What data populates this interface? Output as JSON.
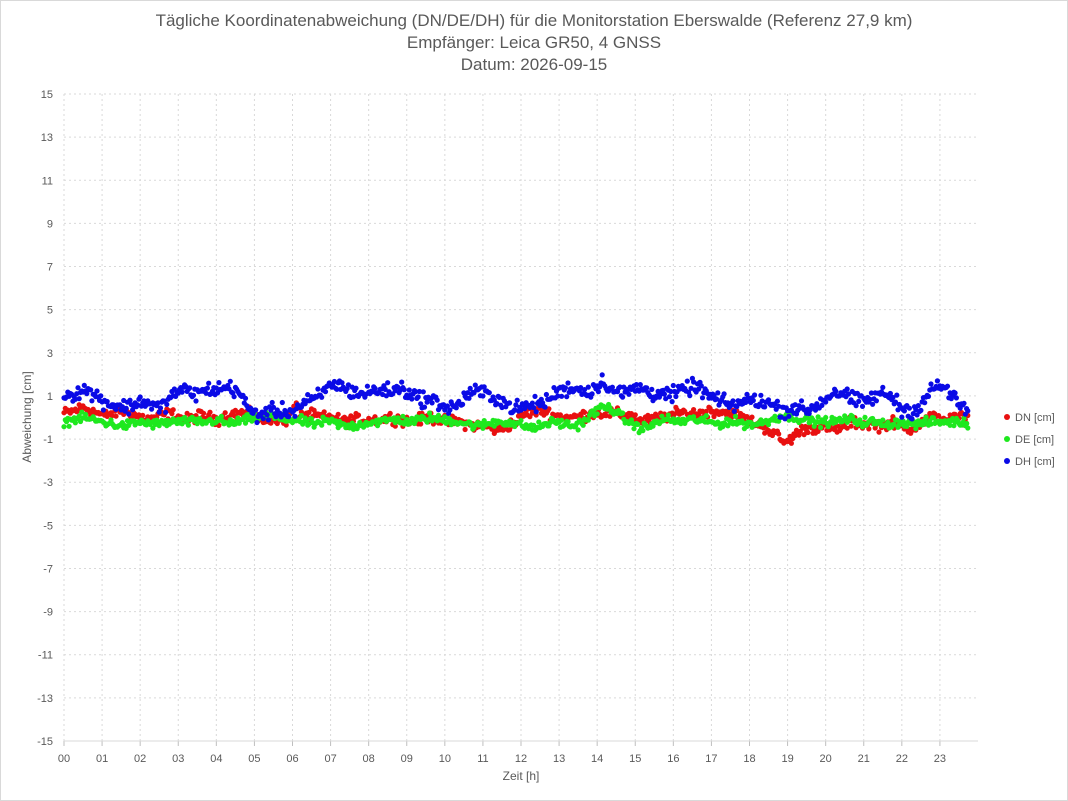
{
  "chart_data": {
    "type": "scatter",
    "title": "Tägliche Koordinatenabweichung (DN/DE/DH) für die Monitorstation Eberswalde (Referenz 27,9 km)",
    "subtitle_receiver": "Empfänger: Leica GR50, 4 GNSS",
    "subtitle_date": "Datum: 2026-09-15",
    "xlabel": "Zeit [h]",
    "ylabel": "Abweichung [cm]",
    "xlim": [
      0,
      24
    ],
    "ylim": [
      -15,
      15
    ],
    "x_ticks": [
      "00",
      "01",
      "02",
      "03",
      "04",
      "05",
      "06",
      "07",
      "08",
      "09",
      "10",
      "11",
      "12",
      "13",
      "14",
      "15",
      "16",
      "17",
      "18",
      "19",
      "20",
      "21",
      "22",
      "23"
    ],
    "y_ticks": [
      15,
      13,
      11,
      9,
      7,
      5,
      3,
      1,
      -1,
      -3,
      -5,
      -7,
      -9,
      -11,
      -13,
      -15
    ],
    "grid": true,
    "legend_position": "right",
    "sample_interval_min": 2,
    "series": [
      {
        "name": "DN [cm]",
        "color": "#e81010",
        "base": [
          0.2,
          0.3,
          0.5,
          0.3,
          0.1,
          0.2,
          0.3,
          0.2,
          0.0,
          -0.1,
          0.1,
          0.2,
          0.0,
          -0.1,
          0.1,
          0.0,
          -0.1,
          0.1,
          0.2,
          0.2,
          0.0,
          -0.2,
          0.0,
          -0.2,
          0.5,
          0.1,
          0.1,
          0.0,
          0.0,
          -0.2,
          -0.1,
          -0.1,
          -0.1,
          -0.1,
          0.0,
          -0.1,
          -0.2,
          -0.1,
          0.0,
          -0.1,
          -0.2,
          -0.2,
          -0.3,
          -0.4,
          -0.4,
          -0.6,
          -0.4,
          -0.2,
          0.2,
          0.3,
          0.3,
          0.1,
          0.0,
          0.0,
          0.1,
          0.2,
          0.2,
          0.2,
          0.1,
          0.1,
          -0.2,
          -0.1,
          0.0,
          0.1,
          0.2,
          0.2,
          0.2,
          0.3,
          0.3,
          0.2,
          0.1,
          -0.1,
          -0.3,
          -0.5,
          -0.8,
          -1.2,
          -0.8,
          -0.5,
          -0.5,
          -0.4,
          -0.6,
          -0.4,
          -0.2,
          -0.3,
          -0.3,
          -0.4,
          -0.2,
          -0.4,
          -0.5,
          -0.3,
          0.0,
          0.0,
          -0.1,
          0.0,
          -0.1,
          0.2
        ],
        "noise": 0.22
      },
      {
        "name": "DE [cm]",
        "color": "#1ee81e",
        "base": [
          -0.2,
          -0.1,
          0.0,
          -0.1,
          -0.2,
          -0.3,
          -0.4,
          -0.3,
          -0.2,
          -0.3,
          -0.3,
          -0.2,
          -0.2,
          -0.2,
          -0.2,
          -0.2,
          -0.1,
          -0.3,
          -0.2,
          -0.1,
          0.0,
          0.1,
          0.0,
          -0.1,
          -0.1,
          -0.2,
          -0.3,
          -0.2,
          -0.2,
          -0.4,
          -0.4,
          -0.3,
          -0.2,
          -0.2,
          -0.1,
          -0.1,
          -0.2,
          -0.1,
          0.0,
          -0.1,
          -0.1,
          -0.2,
          -0.3,
          -0.4,
          -0.3,
          -0.2,
          -0.2,
          -0.3,
          -0.4,
          -0.5,
          -0.3,
          -0.2,
          -0.3,
          -0.4,
          -0.2,
          0.2,
          0.5,
          0.4,
          0.0,
          -0.3,
          -0.5,
          -0.4,
          -0.1,
          -0.1,
          -0.2,
          -0.1,
          -0.1,
          -0.2,
          -0.3,
          -0.2,
          -0.2,
          -0.3,
          -0.3,
          -0.2,
          0.0,
          0.1,
          0.0,
          -0.1,
          -0.2,
          -0.2,
          -0.2,
          -0.1,
          -0.1,
          -0.2,
          -0.2,
          -0.3,
          -0.3,
          -0.2,
          -0.3,
          -0.3,
          -0.2,
          -0.2,
          -0.2,
          -0.2,
          -0.3,
          -0.2
        ],
        "noise": 0.18
      },
      {
        "name": "DH [cm]",
        "color": "#0a0ae6",
        "base": [
          1.0,
          1.1,
          1.3,
          1.1,
          0.8,
          0.6,
          0.5,
          0.5,
          0.8,
          0.6,
          0.4,
          0.9,
          1.3,
          1.2,
          1.1,
          1.3,
          1.3,
          1.4,
          1.3,
          0.5,
          0.1,
          0.2,
          0.3,
          0.3,
          0.3,
          0.7,
          0.8,
          1.2,
          1.6,
          1.4,
          1.2,
          1.1,
          1.2,
          1.3,
          1.2,
          1.4,
          1.1,
          0.9,
          0.8,
          0.7,
          0.4,
          0.6,
          1.1,
          1.2,
          1.1,
          0.9,
          0.6,
          0.4,
          0.5,
          0.6,
          0.7,
          1.1,
          1.3,
          1.4,
          1.2,
          1.3,
          1.7,
          1.3,
          1.1,
          1.3,
          1.4,
          1.1,
          1.2,
          1.0,
          1.2,
          1.4,
          1.4,
          1.0,
          0.8,
          0.6,
          0.6,
          0.8,
          0.8,
          0.7,
          0.5,
          0.3,
          0.5,
          0.3,
          0.5,
          0.8,
          1.2,
          1.1,
          0.8,
          0.7,
          0.9,
          1.1,
          1.0,
          0.4,
          0.3,
          0.5,
          1.2,
          1.5,
          1.2,
          0.6,
          0.3,
          0.2
        ],
        "noise": 0.3
      }
    ]
  }
}
